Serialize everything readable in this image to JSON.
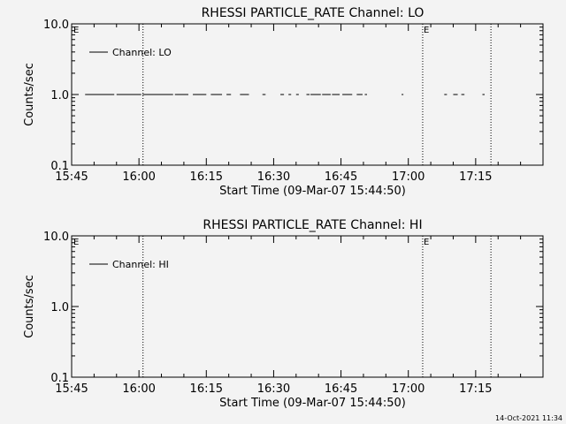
{
  "chart_data": [
    {
      "type": "line",
      "title": "RHESSI PARTICLE_RATE Channel: LO",
      "xlabel": "Start Time (09-Mar-07 15:44:50)",
      "ylabel": "Counts/sec",
      "x_ticks": [
        "15:45",
        "16:00",
        "16:15",
        "16:30",
        "16:45",
        "17:00",
        "17:15"
      ],
      "x_tick_minutes": [
        0,
        15,
        30,
        45,
        60,
        75,
        90
      ],
      "xlim_minutes": [
        0,
        105
      ],
      "y_scale": "log",
      "y_ticks": [
        "0.1",
        "1.0",
        "10.0"
      ],
      "y_tick_values": [
        0.1,
        1.0,
        10.0
      ],
      "ylim": [
        0.1,
        10.0
      ],
      "legend": "top-left",
      "markers": [
        {
          "label": "",
          "minute": 15.9
        },
        {
          "label": "E",
          "minute": 78.2
        },
        {
          "label": "",
          "minute": 93.4
        }
      ],
      "edge_marker_label": "E",
      "series": [
        {
          "name": "Channel: LO",
          "color": "#000000",
          "segments": [
            [
              3.0,
              9.5
            ],
            [
              10.0,
              15.5
            ],
            [
              15.8,
              22.6
            ],
            [
              23.0,
              26.0
            ],
            [
              27.0,
              30.0
            ],
            [
              31.0,
              33.5
            ],
            [
              34.5,
              35.5
            ],
            [
              37.5,
              39.5
            ],
            [
              42.5,
              43.2
            ],
            [
              46.5,
              47.3
            ],
            [
              48.3,
              48.9
            ],
            [
              50.0,
              50.6
            ],
            [
              52.3,
              53.0
            ],
            [
              53.2,
              55.5
            ],
            [
              55.8,
              57.7
            ],
            [
              58.0,
              59.7
            ],
            [
              60.3,
              62.5
            ],
            [
              63.5,
              64.8
            ],
            [
              65.3,
              65.8
            ],
            [
              73.5,
              73.9
            ],
            [
              83.0,
              83.6
            ],
            [
              85.0,
              86.0
            ],
            [
              86.8,
              87.5
            ],
            [
              91.5,
              92.0
            ]
          ],
          "y": 1.0
        }
      ]
    },
    {
      "type": "line",
      "title": "RHESSI PARTICLE_RATE Channel: HI",
      "xlabel": "Start Time (09-Mar-07 15:44:50)",
      "ylabel": "Counts/sec",
      "x_ticks": [
        "15:45",
        "16:00",
        "16:15",
        "16:30",
        "16:45",
        "17:00",
        "17:15"
      ],
      "x_tick_minutes": [
        0,
        15,
        30,
        45,
        60,
        75,
        90
      ],
      "xlim_minutes": [
        0,
        105
      ],
      "y_scale": "log",
      "y_ticks": [
        "0.1",
        "1.0",
        "10.0"
      ],
      "y_tick_values": [
        0.1,
        1.0,
        10.0
      ],
      "ylim": [
        0.1,
        10.0
      ],
      "legend": "top-left",
      "markers": [
        {
          "label": "",
          "minute": 15.9
        },
        {
          "label": "E",
          "minute": 78.2
        },
        {
          "label": "",
          "minute": 93.4
        }
      ],
      "edge_marker_label": "E",
      "series": [
        {
          "name": "Channel: HI",
          "color": "#000000",
          "segments": [],
          "y": 1.0
        }
      ]
    }
  ],
  "footer": {
    "timestamp": "14-Oct-2021 11:34"
  }
}
